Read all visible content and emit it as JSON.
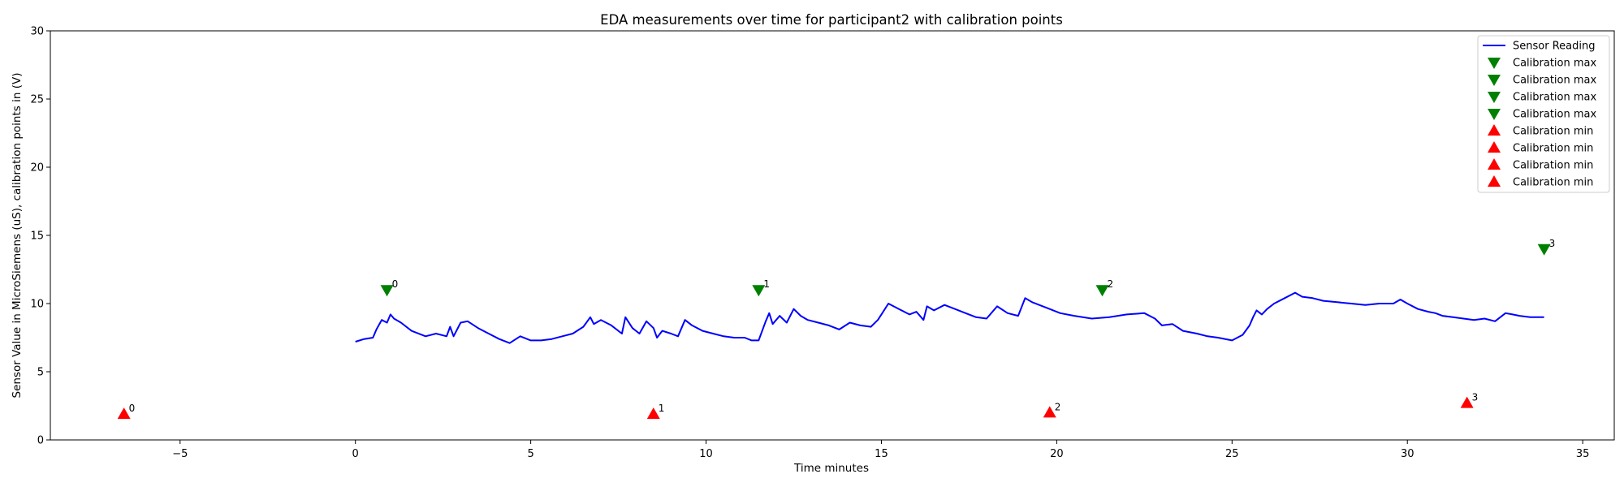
{
  "chart_data": {
    "type": "line",
    "title": "EDA measurements over time for participant2 with calibration points",
    "xlabel": "Time minutes",
    "ylabel": "Sensor Value in MicroSiemens (uS), calibration points in (V)",
    "xlim": [
      -8.7,
      35.9
    ],
    "ylim": [
      0,
      30
    ],
    "xticks": [
      -5,
      0,
      5,
      10,
      15,
      20,
      25,
      30,
      35
    ],
    "yticks": [
      0,
      5,
      10,
      15,
      20,
      25,
      30
    ],
    "grid": false,
    "legend_position": "top-right",
    "series": [
      {
        "name": "Sensor Reading",
        "color": "#0000ff",
        "x": [
          0.0,
          0.25,
          0.5,
          0.6,
          0.75,
          0.9,
          1.0,
          1.1,
          1.3,
          1.6,
          2.0,
          2.3,
          2.6,
          2.7,
          2.8,
          3.0,
          3.2,
          3.5,
          3.8,
          4.1,
          4.4,
          4.7,
          5.0,
          5.3,
          5.6,
          5.9,
          6.2,
          6.5,
          6.7,
          6.8,
          7.0,
          7.3,
          7.6,
          7.7,
          7.9,
          8.1,
          8.3,
          8.5,
          8.6,
          8.75,
          9.0,
          9.2,
          9.4,
          9.6,
          9.9,
          10.2,
          10.5,
          10.8,
          11.1,
          11.3,
          11.5,
          11.7,
          11.8,
          11.9,
          12.1,
          12.3,
          12.5,
          12.7,
          12.9,
          13.2,
          13.5,
          13.8,
          14.1,
          14.4,
          14.7,
          14.9,
          15.0,
          15.2,
          15.5,
          15.8,
          16.0,
          16.2,
          16.3,
          16.5,
          16.8,
          17.1,
          17.4,
          17.7,
          18.0,
          18.3,
          18.6,
          18.9,
          19.1,
          19.3,
          19.5,
          19.8,
          20.1,
          20.5,
          21.0,
          21.5,
          22.0,
          22.5,
          22.8,
          23.0,
          23.3,
          23.6,
          24.0,
          24.3,
          24.6,
          25.0,
          25.3,
          25.5,
          25.6,
          25.7,
          25.85,
          26.0,
          26.2,
          26.5,
          26.8,
          27.0,
          27.3,
          27.6,
          28.0,
          28.4,
          28.8,
          29.2,
          29.6,
          29.8,
          30.0,
          30.3,
          30.6,
          30.8,
          31.0,
          31.3,
          31.6,
          31.9,
          32.2,
          32.5,
          32.8,
          33.0,
          33.2,
          33.5,
          33.9
        ],
        "y": [
          7.2,
          7.4,
          7.5,
          8.1,
          8.8,
          8.6,
          9.2,
          8.9,
          8.6,
          8.0,
          7.6,
          7.8,
          7.6,
          8.3,
          7.6,
          8.6,
          8.7,
          8.2,
          7.8,
          7.4,
          7.1,
          7.6,
          7.3,
          7.3,
          7.4,
          7.6,
          7.8,
          8.3,
          9.0,
          8.5,
          8.8,
          8.4,
          7.8,
          9.0,
          8.2,
          7.8,
          8.7,
          8.2,
          7.5,
          8.0,
          7.8,
          7.6,
          8.8,
          8.4,
          8.0,
          7.8,
          7.6,
          7.5,
          7.5,
          7.3,
          7.3,
          8.7,
          9.3,
          8.5,
          9.1,
          8.6,
          9.6,
          9.1,
          8.8,
          8.6,
          8.4,
          8.1,
          8.6,
          8.4,
          8.3,
          8.8,
          9.2,
          10.0,
          9.6,
          9.2,
          9.4,
          8.8,
          9.8,
          9.5,
          9.9,
          9.6,
          9.3,
          9.0,
          8.9,
          9.8,
          9.3,
          9.1,
          10.4,
          10.1,
          9.9,
          9.6,
          9.3,
          9.1,
          8.9,
          9.0,
          9.2,
          9.3,
          8.9,
          8.4,
          8.5,
          8.0,
          7.8,
          7.6,
          7.5,
          7.3,
          7.7,
          8.4,
          9.0,
          9.5,
          9.2,
          9.6,
          10.0,
          10.4,
          10.8,
          10.5,
          10.4,
          10.2,
          10.1,
          10.0,
          9.9,
          10.0,
          10.0,
          10.3,
          10.0,
          9.6,
          9.4,
          9.3,
          9.1,
          9.0,
          8.9,
          8.8,
          8.9,
          8.7,
          9.3,
          9.2,
          9.1,
          9.0,
          9.0
        ]
      }
    ],
    "calibration_max": {
      "legend_label": "Calibration max",
      "color": "#008000",
      "points": [
        {
          "label": "0",
          "x": 0.9,
          "y": 11.0
        },
        {
          "label": "1",
          "x": 11.5,
          "y": 11.0
        },
        {
          "label": "2",
          "x": 21.3,
          "y": 11.0
        },
        {
          "label": "3",
          "x": 33.9,
          "y": 14.0
        }
      ]
    },
    "calibration_min": {
      "legend_label": "Calibration min",
      "color": "#ff0000",
      "points": [
        {
          "label": "0",
          "x": -6.6,
          "y": 1.9
        },
        {
          "label": "1",
          "x": 8.5,
          "y": 1.9
        },
        {
          "label": "2",
          "x": 19.8,
          "y": 2.0
        },
        {
          "label": "3",
          "x": 31.7,
          "y": 2.7
        }
      ]
    },
    "legend": [
      {
        "label": "Sensor Reading",
        "marker": "line",
        "color": "#0000ff"
      },
      {
        "label": "Calibration max",
        "marker": "triangle-down",
        "color": "#008000"
      },
      {
        "label": "Calibration max",
        "marker": "triangle-down",
        "color": "#008000"
      },
      {
        "label": "Calibration max",
        "marker": "triangle-down",
        "color": "#008000"
      },
      {
        "label": "Calibration max",
        "marker": "triangle-down",
        "color": "#008000"
      },
      {
        "label": "Calibration min",
        "marker": "triangle-up",
        "color": "#ff0000"
      },
      {
        "label": "Calibration min",
        "marker": "triangle-up",
        "color": "#ff0000"
      },
      {
        "label": "Calibration min",
        "marker": "triangle-up",
        "color": "#ff0000"
      },
      {
        "label": "Calibration min",
        "marker": "triangle-up",
        "color": "#ff0000"
      }
    ]
  }
}
